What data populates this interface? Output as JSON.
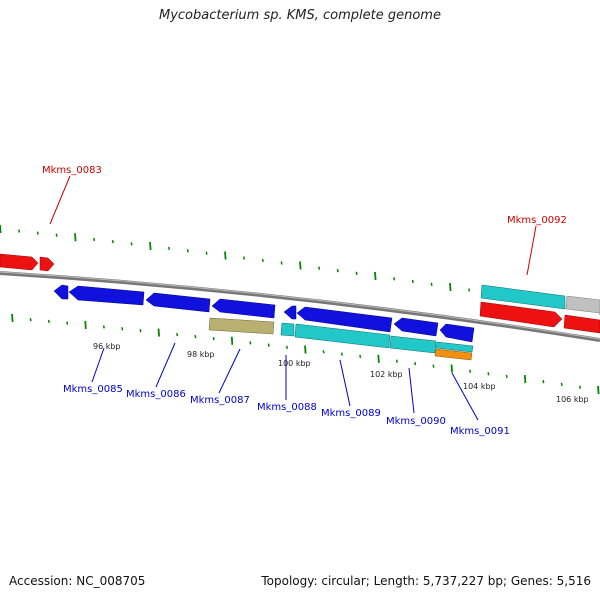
{
  "header": {
    "title": "Mycobacterium sp. KMS, complete genome"
  },
  "footer": {
    "accession": "Accession: NC_008705",
    "summary": "Topology: circular; Length: 5,737,227 bp; Genes: 5,516"
  },
  "colors": {
    "forward_strand": "#ee1111",
    "reverse_strand": "#1111dd",
    "cyan_gene": "#22c8c8",
    "olive_gene": "#b8b070",
    "orange_gene": "#f09010",
    "grey_gene": "#c0c0c0",
    "backbone": "#888888",
    "tick": "#008800",
    "label_red": "#cc0000",
    "label_blue": "#0000cc"
  },
  "scale": {
    "unit": "kbp",
    "ticks": [
      "96 kbp",
      "98 kbp",
      "100 kbp",
      "102 kbp",
      "104 kbp",
      "106 kbp"
    ]
  },
  "genes": [
    {
      "id": "Mkms_0083",
      "color": "red"
    },
    {
      "id": "Mkms_0085",
      "color": "blue"
    },
    {
      "id": "Mkms_0086",
      "color": "blue"
    },
    {
      "id": "Mkms_0087",
      "color": "blue"
    },
    {
      "id": "Mkms_0088",
      "color": "blue"
    },
    {
      "id": "Mkms_0089",
      "color": "blue"
    },
    {
      "id": "Mkms_0090",
      "color": "blue"
    },
    {
      "id": "Mkms_0091",
      "color": "blue"
    },
    {
      "id": "Mkms_0092",
      "color": "red"
    }
  ]
}
